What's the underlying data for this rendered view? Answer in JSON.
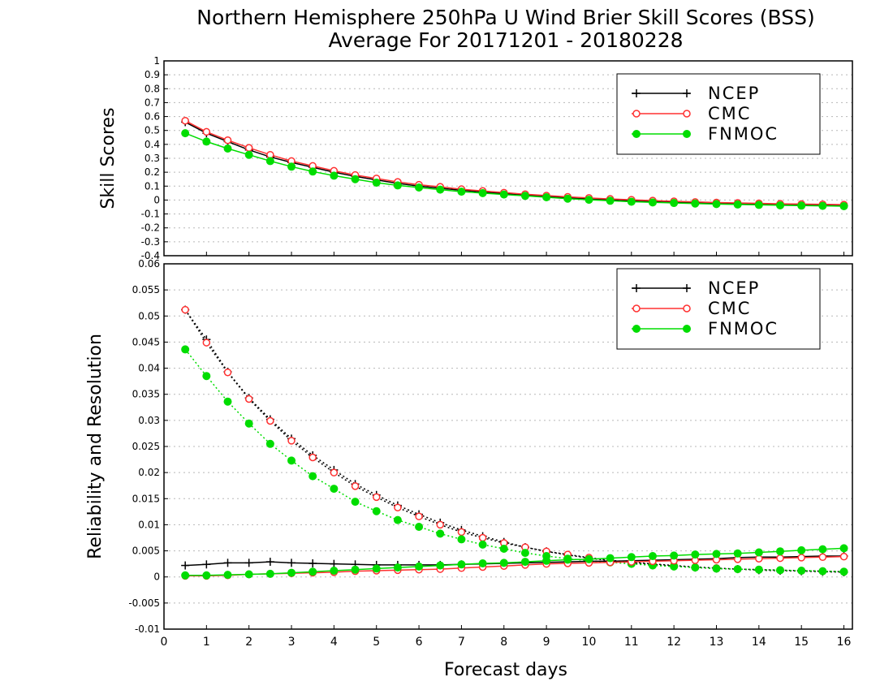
{
  "title_line1": "Northern Hemisphere 250hPa U Wind Brier Skill Scores (BSS)",
  "title_line2": "Average For 20171201 - 20180228",
  "xlabel": "Forecast days",
  "colors": {
    "NCEP": "#000000",
    "CMC": "#ff3030",
    "FNMOC": "#00dd00"
  },
  "chart_data": [
    {
      "type": "line",
      "ylabel": "Skill Scores",
      "ylim": [
        -0.4,
        1
      ],
      "yticks": [
        "-0.4",
        "-0.3",
        "-0.2",
        "-0.1",
        "0",
        "0.1",
        "0.2",
        "0.3",
        "0.4",
        "0.5",
        "0.6",
        "0.7",
        "0.8",
        "0.9",
        "1"
      ],
      "ytick_values": [
        -0.4,
        -0.3,
        -0.2,
        -0.1,
        0,
        0.1,
        0.2,
        0.3,
        0.4,
        0.5,
        0.6,
        0.7,
        0.8,
        0.9,
        1
      ],
      "xlim": [
        0,
        16.2
      ],
      "xticks": [
        "0",
        "1",
        "2",
        "3",
        "4",
        "5",
        "6",
        "7",
        "8",
        "9",
        "10",
        "11",
        "12",
        "13",
        "14",
        "15",
        "16"
      ],
      "xtick_values": [
        0,
        1,
        2,
        3,
        4,
        5,
        6,
        7,
        8,
        9,
        10,
        11,
        12,
        13,
        14,
        15,
        16
      ],
      "legend": {
        "placement": "top-right",
        "entries": [
          "NCEP",
          "CMC",
          "FNMOC"
        ]
      },
      "grid": true,
      "x": [
        0.5,
        1,
        1.5,
        2,
        2.5,
        3,
        3.5,
        4,
        4.5,
        5,
        5.5,
        6,
        6.5,
        7,
        7.5,
        8,
        8.5,
        9,
        9.5,
        10,
        10.5,
        11,
        11.5,
        12,
        12.5,
        13,
        13.5,
        14,
        14.5,
        15,
        15.5,
        16
      ],
      "series": [
        {
          "name": "NCEP",
          "style": "plus",
          "values": [
            0.56,
            0.48,
            0.42,
            0.36,
            0.31,
            0.27,
            0.235,
            0.2,
            0.17,
            0.145,
            0.12,
            0.1,
            0.085,
            0.07,
            0.058,
            0.046,
            0.035,
            0.025,
            0.016,
            0.008,
            0.0,
            -0.006,
            -0.012,
            -0.017,
            -0.021,
            -0.025,
            -0.028,
            -0.031,
            -0.034,
            -0.036,
            -0.038,
            -0.04
          ]
        },
        {
          "name": "CMC",
          "style": "open-circle",
          "values": [
            0.57,
            0.49,
            0.43,
            0.375,
            0.325,
            0.28,
            0.245,
            0.21,
            0.18,
            0.155,
            0.13,
            0.11,
            0.095,
            0.078,
            0.065,
            0.053,
            0.042,
            0.032,
            0.023,
            0.015,
            0.008,
            0.002,
            -0.004,
            -0.009,
            -0.014,
            -0.018,
            -0.021,
            -0.024,
            -0.027,
            -0.029,
            -0.031,
            -0.033
          ]
        },
        {
          "name": "FNMOC",
          "style": "filled-circle",
          "values": [
            0.48,
            0.42,
            0.37,
            0.325,
            0.28,
            0.24,
            0.205,
            0.175,
            0.15,
            0.125,
            0.105,
            0.09,
            0.075,
            0.06,
            0.05,
            0.04,
            0.03,
            0.02,
            0.01,
            0.002,
            -0.005,
            -0.012,
            -0.017,
            -0.021,
            -0.025,
            -0.029,
            -0.032,
            -0.035,
            -0.038,
            -0.04,
            -0.042,
            -0.044
          ]
        }
      ]
    },
    {
      "type": "line",
      "ylabel": "Reliability and Resolution",
      "ylim": [
        -0.01,
        0.06
      ],
      "yticks": [
        "-0.01",
        "-0.005",
        "0",
        "0.005",
        "0.01",
        "0.015",
        "0.02",
        "0.025",
        "0.03",
        "0.035",
        "0.04",
        "0.045",
        "0.05",
        "0.055",
        "0.06"
      ],
      "ytick_values": [
        -0.01,
        -0.005,
        0,
        0.005,
        0.01,
        0.015,
        0.02,
        0.025,
        0.03,
        0.035,
        0.04,
        0.045,
        0.05,
        0.055,
        0.06
      ],
      "xlim": [
        0,
        16.2
      ],
      "xticks": [
        "0",
        "1",
        "2",
        "3",
        "4",
        "5",
        "6",
        "7",
        "8",
        "9",
        "10",
        "11",
        "12",
        "13",
        "14",
        "15",
        "16"
      ],
      "xtick_values": [
        0,
        1,
        2,
        3,
        4,
        5,
        6,
        7,
        8,
        9,
        10,
        11,
        12,
        13,
        14,
        15,
        16
      ],
      "legend": {
        "placement": "top-right",
        "entries": [
          "NCEP",
          "CMC",
          "FNMOC"
        ]
      },
      "grid": true,
      "x": [
        0.5,
        1,
        1.5,
        2,
        2.5,
        3,
        3.5,
        4,
        4.5,
        5,
        5.5,
        6,
        6.5,
        7,
        7.5,
        8,
        8.5,
        9,
        9.5,
        10,
        10.5,
        11,
        11.5,
        12,
        12.5,
        13,
        13.5,
        14,
        14.5,
        15,
        15.5,
        16
      ],
      "series": [
        {
          "name": "NCEP",
          "kind": "resolution",
          "style": "plus",
          "dotted": true,
          "values": [
            0.0512,
            0.0455,
            0.0393,
            0.0343,
            0.0302,
            0.0265,
            0.0233,
            0.0205,
            0.0178,
            0.0157,
            0.0137,
            0.012,
            0.0104,
            0.009,
            0.0078,
            0.0067,
            0.0057,
            0.0049,
            0.0042,
            0.0036,
            0.0031,
            0.0027,
            0.0024,
            0.0021,
            0.0018,
            0.0016,
            0.0015,
            0.0013,
            0.0012,
            0.0011,
            0.001,
            0.0009
          ]
        },
        {
          "name": "CMC",
          "kind": "resolution",
          "style": "open-circle",
          "dotted": true,
          "values": [
            0.0512,
            0.0449,
            0.0392,
            0.0341,
            0.0299,
            0.0261,
            0.0229,
            0.02,
            0.0174,
            0.0153,
            0.0133,
            0.0116,
            0.01,
            0.0086,
            0.0075,
            0.0065,
            0.0057,
            0.0049,
            0.0043,
            0.0037,
            0.0032,
            0.0028,
            0.0025,
            0.0022,
            0.0019,
            0.0017,
            0.0015,
            0.0014,
            0.0013,
            0.0012,
            0.0011,
            0.001
          ]
        },
        {
          "name": "FNMOC",
          "kind": "resolution",
          "style": "filled-circle",
          "dotted": true,
          "values": [
            0.0436,
            0.0385,
            0.0336,
            0.0294,
            0.0255,
            0.0223,
            0.0193,
            0.0169,
            0.0144,
            0.0126,
            0.0109,
            0.0096,
            0.0083,
            0.0072,
            0.0062,
            0.0054,
            0.0046,
            0.004,
            0.0035,
            0.0031,
            0.0028,
            0.0025,
            0.0022,
            0.002,
            0.0018,
            0.0016,
            0.0015,
            0.0014,
            0.0013,
            0.0012,
            0.0011,
            0.001
          ]
        },
        {
          "name": "NCEP",
          "kind": "reliability",
          "style": "plus",
          "dotted": false,
          "values": [
            0.0022,
            0.0024,
            0.0027,
            0.0027,
            0.0029,
            0.0027,
            0.0026,
            0.0025,
            0.0024,
            0.0023,
            0.0023,
            0.0023,
            0.0023,
            0.0024,
            0.0025,
            0.0026,
            0.0027,
            0.0028,
            0.0029,
            0.003,
            0.003,
            0.0031,
            0.0032,
            0.0033,
            0.0034,
            0.0035,
            0.0037,
            0.0038,
            0.0038,
            0.0039,
            0.004,
            0.004
          ]
        },
        {
          "name": "CMC",
          "kind": "reliability",
          "style": "open-circle",
          "dotted": false,
          "values": [
            0.0002,
            0.0002,
            0.0003,
            0.0005,
            0.0006,
            0.0007,
            0.0008,
            0.0009,
            0.0011,
            0.0012,
            0.0013,
            0.0014,
            0.0015,
            0.0017,
            0.0019,
            0.0021,
            0.0023,
            0.0025,
            0.0026,
            0.0027,
            0.0028,
            0.0029,
            0.003,
            0.0031,
            0.0032,
            0.0033,
            0.0034,
            0.0035,
            0.0036,
            0.0037,
            0.0038,
            0.0039
          ]
        },
        {
          "name": "FNMOC",
          "kind": "reliability",
          "style": "filled-circle",
          "dotted": false,
          "values": [
            0.0003,
            0.0003,
            0.0004,
            0.0005,
            0.0006,
            0.0008,
            0.001,
            0.0012,
            0.0014,
            0.0016,
            0.0018,
            0.002,
            0.0022,
            0.0024,
            0.0026,
            0.0027,
            0.0029,
            0.0031,
            0.0033,
            0.0034,
            0.0036,
            0.0038,
            0.004,
            0.0041,
            0.0043,
            0.0044,
            0.0045,
            0.0047,
            0.0049,
            0.0051,
            0.0053,
            0.0055
          ]
        }
      ]
    }
  ]
}
